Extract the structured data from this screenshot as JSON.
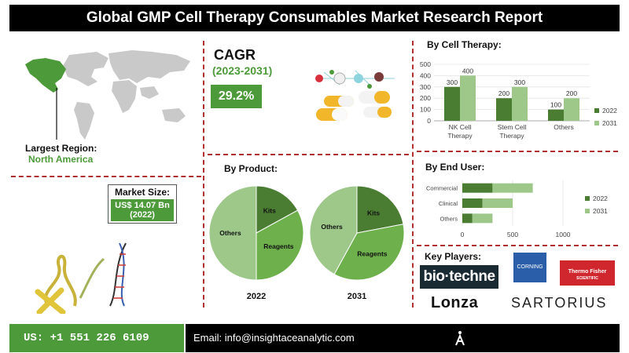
{
  "header": {
    "title": "Global GMP Cell Therapy Consumables Market Research Report"
  },
  "region": {
    "label": "Largest Region:",
    "value": "North America"
  },
  "cagr": {
    "title": "CAGR",
    "years": "(2023-2031)",
    "value": "29.2%"
  },
  "market_size": {
    "label": "Market Size:",
    "value": "US$ 14.07 Bn",
    "year": "(2022)"
  },
  "by_product": {
    "title": "By Product:"
  },
  "by_cell_therapy": {
    "title": "By Cell Therapy:"
  },
  "by_end_user": {
    "title": "By End User:"
  },
  "key_players": {
    "title": "Key Players:",
    "logos": {
      "biotechne": "bio·techne",
      "corning": "CORNING",
      "thermo_1": "Thermo Fisher",
      "thermo_2": "SCIENTIFIC",
      "lonza": "Lonza",
      "sartorius": "SARTORIUS"
    }
  },
  "footer": {
    "phone": "US: +1 551 226 6109",
    "email": "Email: info@insightaceanalytic.com"
  },
  "colors": {
    "dark_green": "#4a7d32",
    "light_green": "#9dc88a",
    "mid_green": "#6eb04c",
    "accent": "#4d9a3a"
  },
  "chart_data": [
    {
      "type": "bar",
      "title": "By Cell Therapy:",
      "categories": [
        "NK Cell Therapy",
        "Stem Cell Therapy",
        "Others"
      ],
      "series": [
        {
          "name": "2022",
          "values": [
            300,
            200,
            100
          ]
        },
        {
          "name": "2031",
          "values": [
            400,
            300,
            200
          ]
        }
      ],
      "ylim": [
        0,
        500
      ],
      "yticks": [
        0,
        100,
        200,
        300,
        400,
        500
      ],
      "legend": "right"
    },
    {
      "type": "bar",
      "orientation": "horizontal",
      "stacked": true,
      "title": "By End User:",
      "categories": [
        "Commercial",
        "Clinical",
        "Others"
      ],
      "series": [
        {
          "name": "2022",
          "values": [
            300,
            200,
            100
          ]
        },
        {
          "name": "2031",
          "values": [
            400,
            300,
            200
          ]
        }
      ],
      "xlim": [
        0,
        1000
      ],
      "xticks": [
        0,
        500,
        1000
      ],
      "legend": "right"
    },
    {
      "type": "pie",
      "title": "2022",
      "labels": [
        "Kits",
        "Reagents",
        "Others"
      ],
      "values": [
        17,
        33,
        50
      ]
    },
    {
      "type": "pie",
      "title": "2031",
      "labels": [
        "Kits",
        "Reagents",
        "Others"
      ],
      "values": [
        22,
        36,
        42
      ]
    }
  ]
}
